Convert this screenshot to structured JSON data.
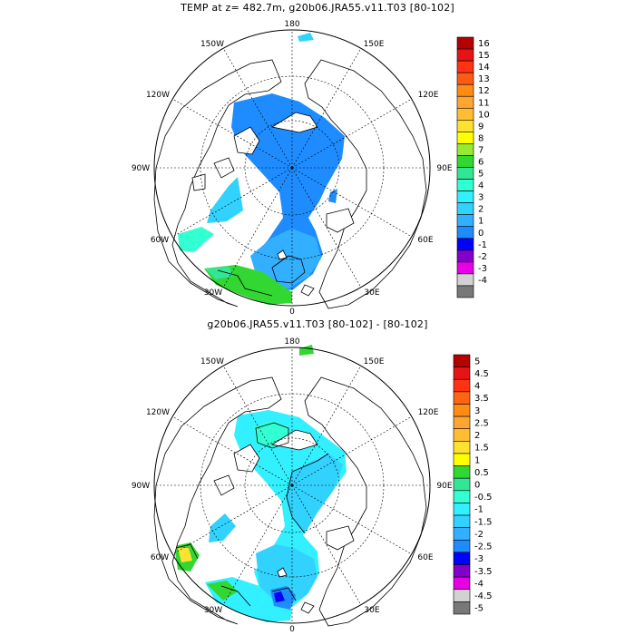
{
  "panels": [
    {
      "title": "TEMP at z= 482.7m, g20b06.JRA55.v11.T03 [80-102]",
      "lon_labels": [
        "180",
        "150W",
        "150E",
        "120W",
        "120E",
        "90W",
        "90E",
        "60W",
        "60E",
        "30W",
        "30E",
        "0"
      ],
      "colorbar": {
        "labels": [
          "16",
          "15",
          "14",
          "13",
          "12",
          "11",
          "10",
          "9",
          "8",
          "7",
          "6",
          "5",
          "4",
          "3",
          "2",
          "1",
          "0",
          "-1",
          "-2",
          "-3",
          "-4"
        ],
        "colors": [
          "#b40000",
          "#e61414",
          "#ff3214",
          "#ff5a14",
          "#ff8c14",
          "#ffa532",
          "#ffbe32",
          "#ffe132",
          "#ffff00",
          "#96eb32",
          "#32d732",
          "#32e696",
          "#32ffd2",
          "#32f0ff",
          "#32d2ff",
          "#32afff",
          "#1e8cff",
          "#0000ff",
          "#8200c8",
          "#e600e6",
          "#d2d2d2",
          "#787878"
        ]
      }
    },
    {
      "title": "g20b06.JRA55.v11.T03 [80-102] -  [80-102]",
      "lon_labels": [
        "180",
        "150W",
        "150E",
        "120W",
        "120E",
        "90W",
        "90E",
        "60W",
        "60E",
        "30W",
        "30E",
        "0"
      ],
      "colorbar": {
        "labels": [
          "5",
          "4.5",
          "4",
          "3.5",
          "3",
          "2.5",
          "2",
          "1.5",
          "1",
          "0.5",
          "0",
          "-0.5",
          "-1",
          "-1.5",
          "-2",
          "-2.5",
          "-3",
          "-3.5",
          "-4",
          "-4.5",
          "-5"
        ],
        "colors": [
          "#b40000",
          "#e61414",
          "#ff3214",
          "#ff6414",
          "#ff8c14",
          "#ffa532",
          "#ffbe32",
          "#ffe132",
          "#ffff00",
          "#32d732",
          "#32e696",
          "#32ffd2",
          "#32f0ff",
          "#32d2ff",
          "#32afff",
          "#1e8cff",
          "#0000ff",
          "#8200c8",
          "#e600e6",
          "#d2d2d2",
          "#787878"
        ]
      }
    }
  ]
}
